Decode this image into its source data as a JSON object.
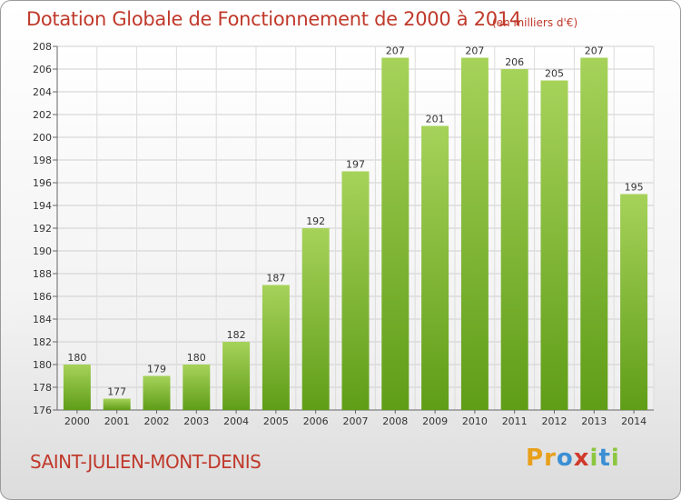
{
  "page": {
    "title": "Dotation Globale de Fonctionnement de 2000 à 2014",
    "subtitle": "(en milliers d'€)",
    "commune": "SAINT-JULIEN-MONT-DENIS",
    "logo_letters": [
      "P",
      "r",
      "o",
      "x",
      "i",
      "t",
      "i"
    ],
    "logo_colors": [
      "#e8a01c",
      "#e8a01c",
      "#3b8fd4",
      "#d03a2b",
      "#8cc63f",
      "#3b8fd4",
      "#8cc63f"
    ]
  },
  "colors": {
    "bar_top": "#a6d25a",
    "bar_bottom": "#5f9d17",
    "accent": "#c0392b"
  },
  "chart_data": {
    "type": "bar",
    "title": "Dotation Globale de Fonctionnement de 2000 à 2014",
    "subtitle": "(en milliers d'€)",
    "xlabel": "",
    "ylabel": "",
    "categories": [
      "2000",
      "2001",
      "2002",
      "2003",
      "2004",
      "2005",
      "2006",
      "2007",
      "2008",
      "2009",
      "2010",
      "2011",
      "2012",
      "2013",
      "2014"
    ],
    "values": [
      180,
      177,
      179,
      180,
      182,
      187,
      192,
      197,
      207,
      201,
      207,
      206,
      205,
      207,
      195
    ],
    "ylim": [
      176,
      208
    ],
    "yticks": [
      176,
      178,
      180,
      182,
      184,
      186,
      188,
      190,
      192,
      194,
      196,
      198,
      200,
      202,
      204,
      206,
      208
    ],
    "grid": true,
    "legend": "none"
  }
}
